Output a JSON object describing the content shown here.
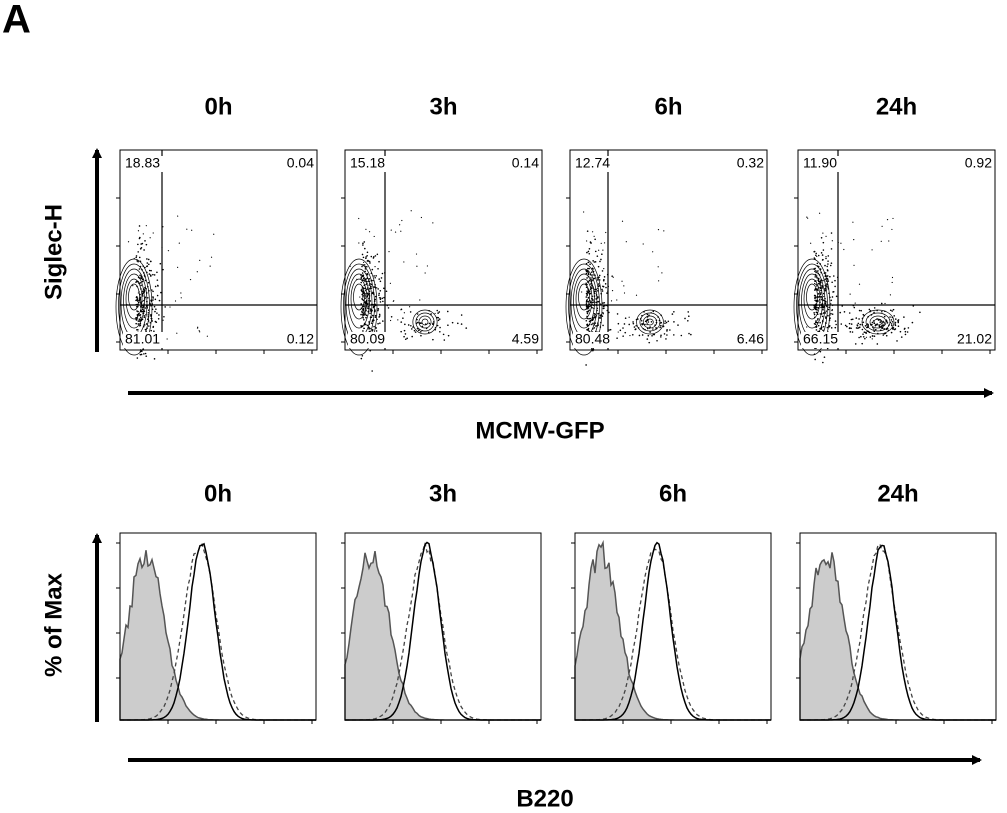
{
  "panel_label": "A",
  "top": {
    "y_label": "Siglec-H",
    "x_label": "MCMV-GFP",
    "plots": [
      {
        "time": "0h",
        "quadrants": {
          "upper_left": "18.83",
          "upper_right": "0.04",
          "lower_left": "81.01",
          "lower_right": "0.12"
        }
      },
      {
        "time": "3h",
        "quadrants": {
          "upper_left": "15.18",
          "upper_right": "0.14",
          "lower_left": "80.09",
          "lower_right": "4.59"
        }
      },
      {
        "time": "6h",
        "quadrants": {
          "upper_left": "12.74",
          "upper_right": "0.32",
          "lower_left": "80.48",
          "lower_right": "6.46"
        }
      },
      {
        "time": "24h",
        "quadrants": {
          "upper_left": "11.90",
          "upper_right": "0.92",
          "lower_left": "66.15",
          "lower_right": "21.02"
        }
      }
    ]
  },
  "bottom": {
    "y_label": "% of Max",
    "x_label": "B220",
    "plots": [
      {
        "time": "0h"
      },
      {
        "time": "3h"
      },
      {
        "time": "6h"
      },
      {
        "time": "24h"
      }
    ]
  }
}
